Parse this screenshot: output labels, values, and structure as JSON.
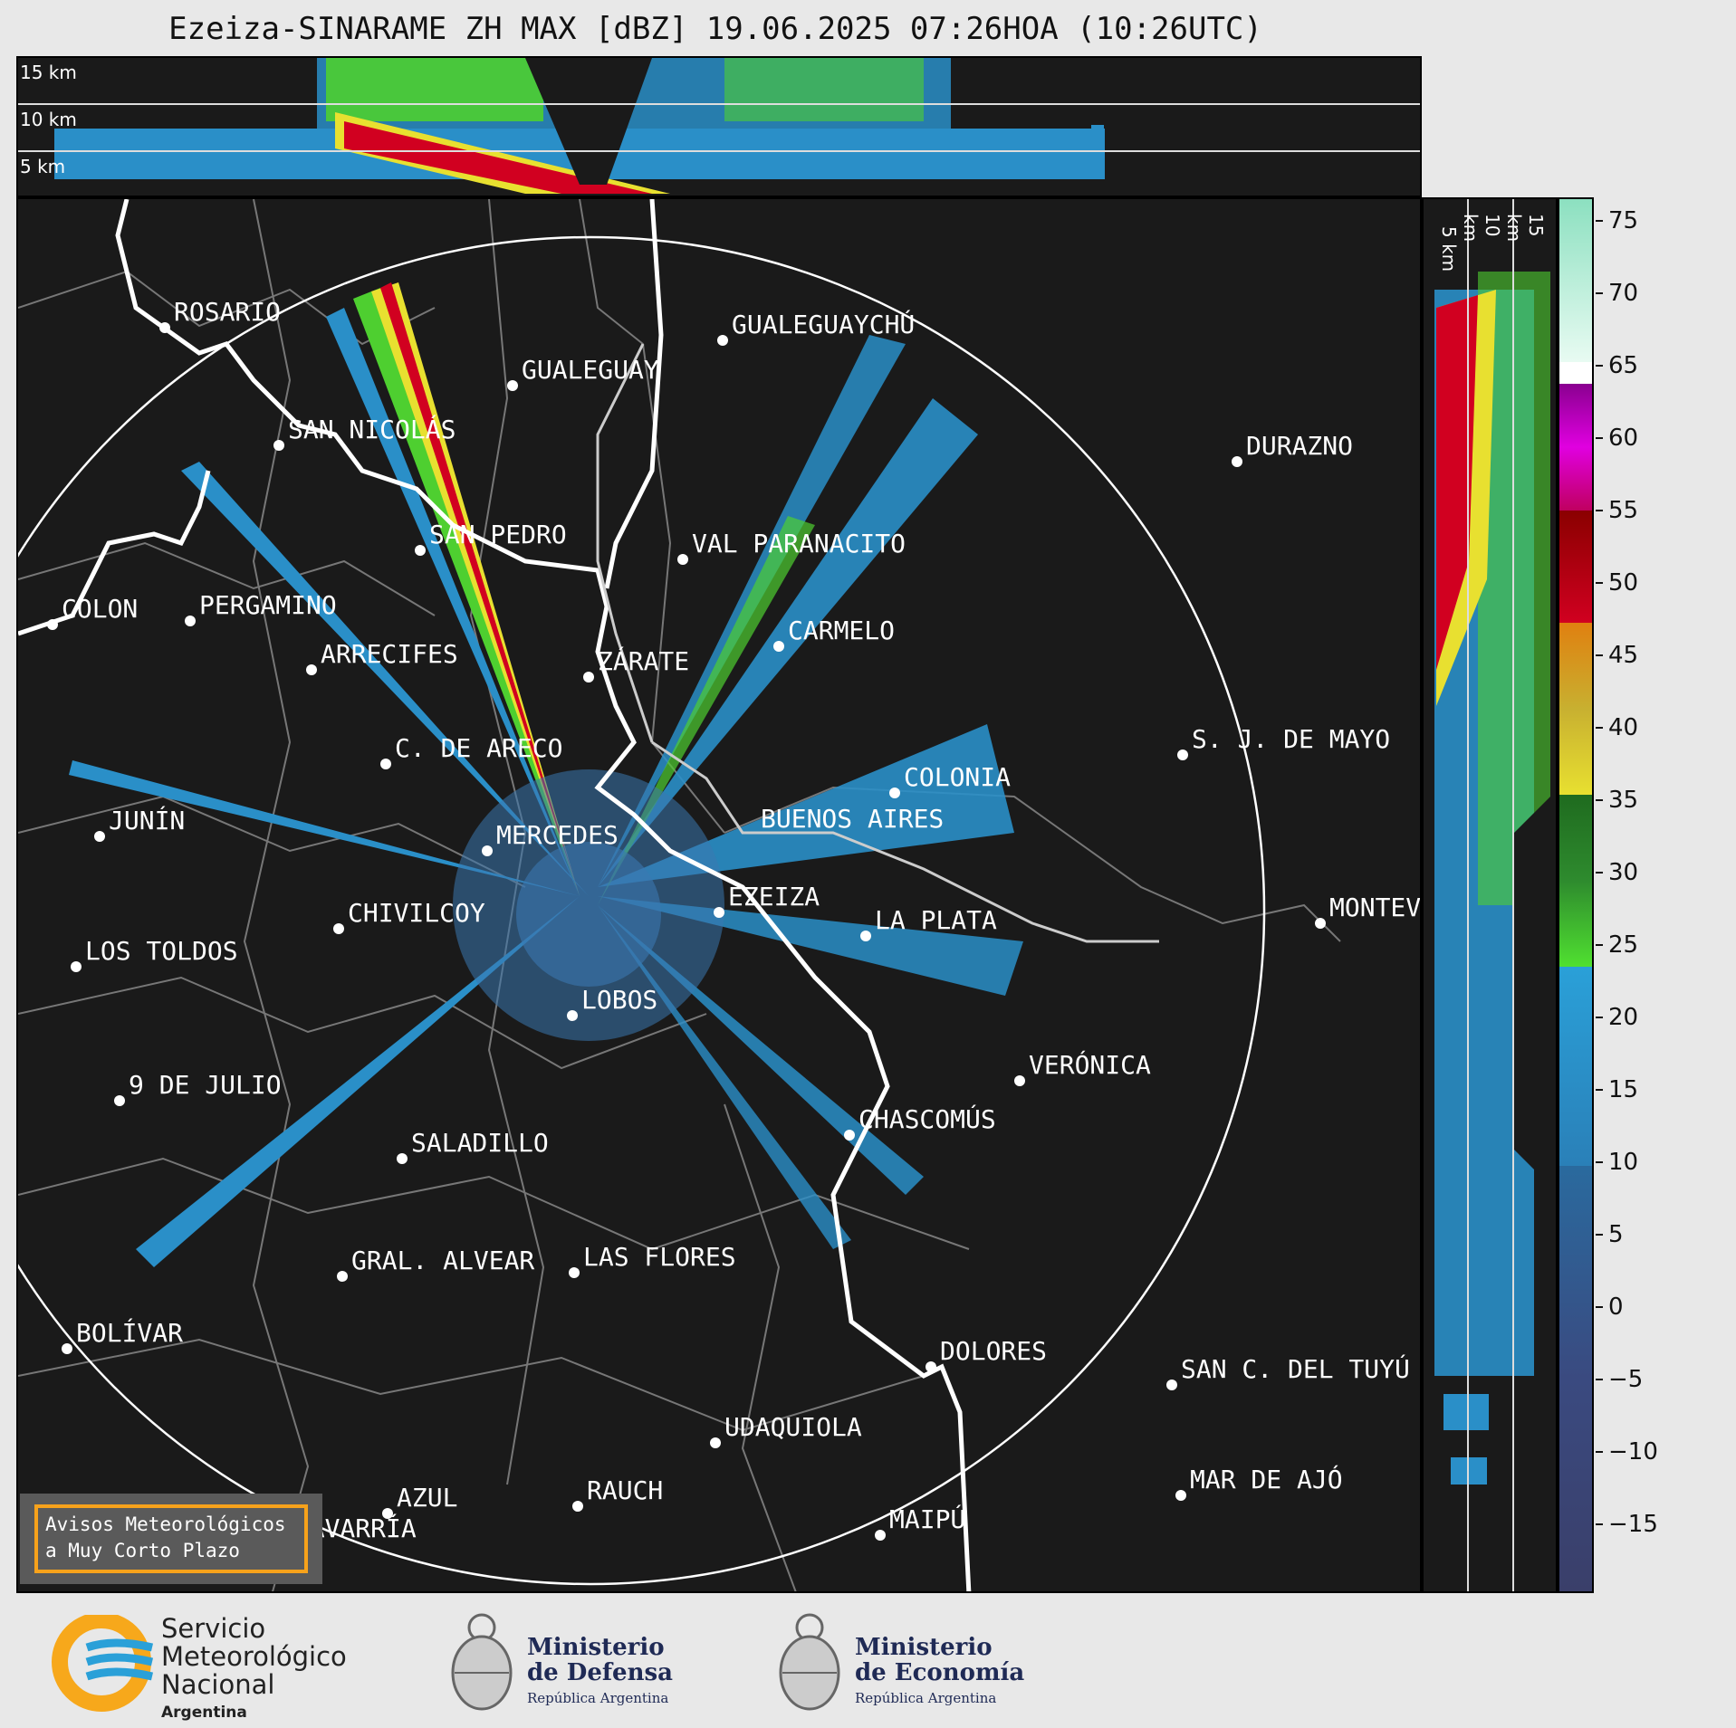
{
  "title": "Ezeiza-SINARAME ZH MAX [dBZ] 19.06.2025 07:26HOA (10:26UTC)",
  "top_panel": {
    "alt_labels": [
      "15 km",
      "10 km",
      "5 km"
    ]
  },
  "side_panel": {
    "alt_labels": [
      "5 km",
      "10 km",
      "15 km"
    ]
  },
  "colorbar": {
    "ticks": [
      "75",
      "70",
      "65",
      "60",
      "55",
      "50",
      "45",
      "40",
      "35",
      "30",
      "25",
      "20",
      "15",
      "10",
      "5",
      "0",
      "−5",
      "−10",
      "−15"
    ],
    "colors": {
      "light_green": "#8ce0c0",
      "white": "#ffffff",
      "magenta": "#c000c0",
      "purple": "#8a0090",
      "red": "#d10020",
      "dark_red": "#8a0000",
      "orange": "#e08010",
      "yellow": "#e8e030",
      "green": "#2e8b2e",
      "bright_green": "#50e030",
      "blue": "#2aa0d8",
      "navy": "#3a3f6a"
    }
  },
  "cities": [
    {
      "name": "ROSARIO"
    },
    {
      "name": "GUALEGUAYCHÚ"
    },
    {
      "name": "GUALEGUAY"
    },
    {
      "name": "SAN NICOLÁS"
    },
    {
      "name": "DURAZNO"
    },
    {
      "name": "SAN PEDRO"
    },
    {
      "name": "VAL PARANACITO"
    },
    {
      "name": "COLON"
    },
    {
      "name": "PERGAMINO"
    },
    {
      "name": "CARMELO"
    },
    {
      "name": "ARRECIFES"
    },
    {
      "name": "ZÁRATE"
    },
    {
      "name": "S. J. DE MAYO"
    },
    {
      "name": "C. DE ARECO"
    },
    {
      "name": "COLONIA"
    },
    {
      "name": "JUNÍN"
    },
    {
      "name": "BUENOS AIRES"
    },
    {
      "name": "MERCEDES"
    },
    {
      "name": "EZEIZA"
    },
    {
      "name": "MONTEV"
    },
    {
      "name": "CHIVILCOY"
    },
    {
      "name": "LA PLATA"
    },
    {
      "name": "LOS TOLDOS"
    },
    {
      "name": "LOBOS"
    },
    {
      "name": "VERÓNICA"
    },
    {
      "name": "9 DE JULIO"
    },
    {
      "name": "CHASCOMÚS"
    },
    {
      "name": "SALADILLO"
    },
    {
      "name": "GRAL. ALVEAR"
    },
    {
      "name": "LAS FLORES"
    },
    {
      "name": "BOLÍVAR"
    },
    {
      "name": "DOLORES"
    },
    {
      "name": "SAN C. DEL TUYÚ"
    },
    {
      "name": "UDAQUIOLA"
    },
    {
      "name": "MAR DE AJÓ"
    },
    {
      "name": "RAUCH"
    },
    {
      "name": "AZUL"
    },
    {
      "name": "MAIPÚ"
    },
    {
      "name": "OLAVARRÍA"
    }
  ],
  "notice": {
    "line1": "Avisos Meteorológicos",
    "line2": "a Muy Corto Plazo"
  },
  "footer": {
    "smn": {
      "line1": "Servicio",
      "line2": "Meteorológico",
      "line3": "Nacional",
      "line4": "Argentina"
    },
    "defensa": {
      "line1": "Ministerio",
      "line2": "de Defensa",
      "line3": "República Argentina"
    },
    "economia": {
      "line1": "Ministerio",
      "line2": "de Economía",
      "line3": "República Argentina"
    }
  }
}
